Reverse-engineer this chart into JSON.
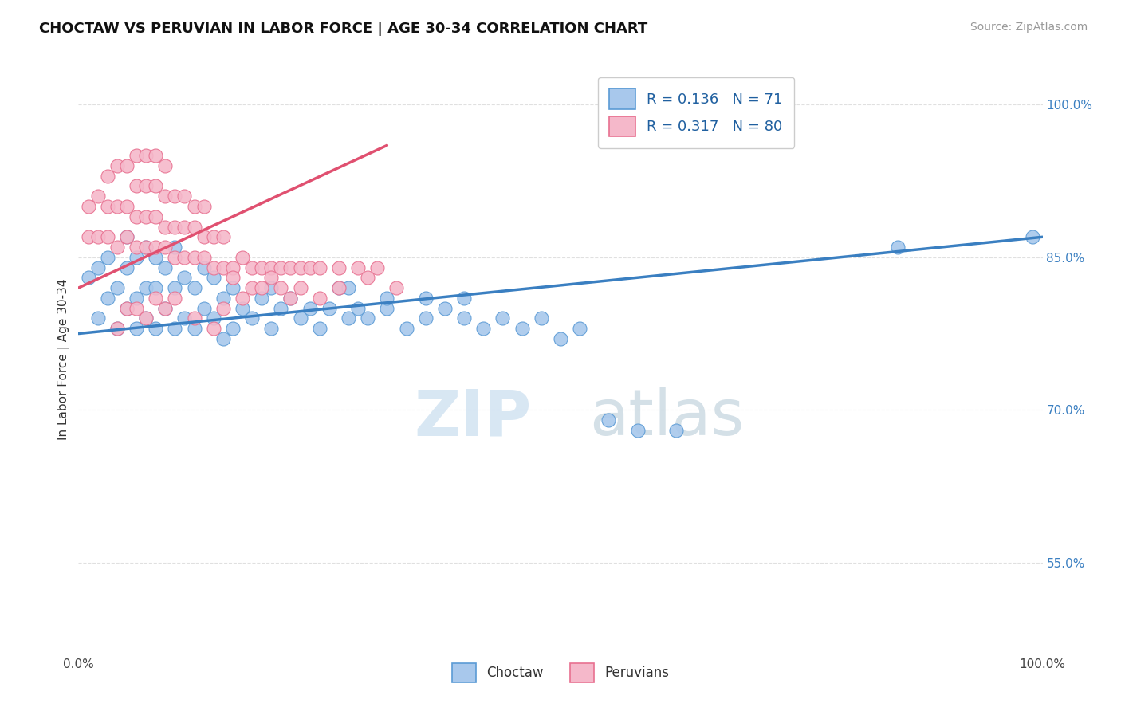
{
  "title": "CHOCTAW VS PERUVIAN IN LABOR FORCE | AGE 30-34 CORRELATION CHART",
  "source_text": "Source: ZipAtlas.com",
  "ylabel": "In Labor Force | Age 30-34",
  "xlim": [
    0,
    1
  ],
  "ylim": [
    0.46,
    1.04
  ],
  "blue_color": "#A8C8EC",
  "pink_color": "#F5B8CA",
  "blue_edge_color": "#5B9BD5",
  "pink_edge_color": "#E87090",
  "blue_line_color": "#3A7FC1",
  "pink_line_color": "#E05070",
  "grid_color": "#DDDDDD",
  "legend_R_blue": "0.136",
  "legend_N_blue": "71",
  "legend_R_pink": "0.317",
  "legend_N_pink": "80",
  "watermark_zip": "ZIP",
  "watermark_atlas": "atlas",
  "ytick_vals": [
    0.55,
    0.7,
    0.85,
    1.0
  ],
  "ytick_labels": [
    "55.0%",
    "70.0%",
    "85.0%",
    "100.0%"
  ],
  "xtick_vals": [
    0.0,
    1.0
  ],
  "xtick_labels": [
    "0.0%",
    "100.0%"
  ],
  "blue_scatter_x": [
    0.01,
    0.02,
    0.02,
    0.03,
    0.03,
    0.04,
    0.04,
    0.05,
    0.05,
    0.05,
    0.06,
    0.06,
    0.06,
    0.07,
    0.07,
    0.07,
    0.08,
    0.08,
    0.08,
    0.09,
    0.09,
    0.1,
    0.1,
    0.1,
    0.11,
    0.11,
    0.12,
    0.12,
    0.13,
    0.13,
    0.14,
    0.14,
    0.15,
    0.15,
    0.16,
    0.16,
    0.17,
    0.18,
    0.19,
    0.2,
    0.2,
    0.21,
    0.22,
    0.23,
    0.24,
    0.25,
    0.26,
    0.27,
    0.28,
    0.29,
    0.3,
    0.32,
    0.34,
    0.36,
    0.38,
    0.4,
    0.42,
    0.44,
    0.46,
    0.48,
    0.5,
    0.52,
    0.55,
    0.58,
    0.62,
    0.28,
    0.32,
    0.36,
    0.4,
    0.85,
    0.99
  ],
  "blue_scatter_y": [
    0.83,
    0.79,
    0.84,
    0.81,
    0.85,
    0.78,
    0.82,
    0.8,
    0.84,
    0.87,
    0.78,
    0.81,
    0.85,
    0.79,
    0.82,
    0.86,
    0.78,
    0.82,
    0.85,
    0.8,
    0.84,
    0.78,
    0.82,
    0.86,
    0.79,
    0.83,
    0.78,
    0.82,
    0.8,
    0.84,
    0.79,
    0.83,
    0.77,
    0.81,
    0.78,
    0.82,
    0.8,
    0.79,
    0.81,
    0.78,
    0.82,
    0.8,
    0.81,
    0.79,
    0.8,
    0.78,
    0.8,
    0.82,
    0.79,
    0.8,
    0.79,
    0.8,
    0.78,
    0.79,
    0.8,
    0.79,
    0.78,
    0.79,
    0.78,
    0.79,
    0.77,
    0.78,
    0.69,
    0.68,
    0.68,
    0.82,
    0.81,
    0.81,
    0.81,
    0.86,
    0.87
  ],
  "pink_scatter_x": [
    0.01,
    0.01,
    0.02,
    0.02,
    0.03,
    0.03,
    0.03,
    0.04,
    0.04,
    0.04,
    0.05,
    0.05,
    0.05,
    0.06,
    0.06,
    0.06,
    0.06,
    0.07,
    0.07,
    0.07,
    0.07,
    0.08,
    0.08,
    0.08,
    0.08,
    0.09,
    0.09,
    0.09,
    0.09,
    0.1,
    0.1,
    0.1,
    0.11,
    0.11,
    0.11,
    0.12,
    0.12,
    0.12,
    0.13,
    0.13,
    0.13,
    0.14,
    0.14,
    0.15,
    0.15,
    0.16,
    0.17,
    0.18,
    0.19,
    0.2,
    0.21,
    0.22,
    0.23,
    0.24,
    0.25,
    0.27,
    0.29,
    0.31,
    0.14,
    0.15,
    0.16,
    0.17,
    0.18,
    0.19,
    0.2,
    0.21,
    0.22,
    0.23,
    0.25,
    0.27,
    0.3,
    0.33,
    0.04,
    0.05,
    0.06,
    0.07,
    0.08,
    0.09,
    0.1,
    0.12
  ],
  "pink_scatter_y": [
    0.87,
    0.9,
    0.87,
    0.91,
    0.87,
    0.9,
    0.93,
    0.86,
    0.9,
    0.94,
    0.87,
    0.9,
    0.94,
    0.86,
    0.89,
    0.92,
    0.95,
    0.86,
    0.89,
    0.92,
    0.95,
    0.86,
    0.89,
    0.92,
    0.95,
    0.86,
    0.88,
    0.91,
    0.94,
    0.85,
    0.88,
    0.91,
    0.85,
    0.88,
    0.91,
    0.85,
    0.88,
    0.9,
    0.85,
    0.87,
    0.9,
    0.84,
    0.87,
    0.84,
    0.87,
    0.84,
    0.85,
    0.84,
    0.84,
    0.84,
    0.84,
    0.84,
    0.84,
    0.84,
    0.84,
    0.84,
    0.84,
    0.84,
    0.78,
    0.8,
    0.83,
    0.81,
    0.82,
    0.82,
    0.83,
    0.82,
    0.81,
    0.82,
    0.81,
    0.82,
    0.83,
    0.82,
    0.78,
    0.8,
    0.8,
    0.79,
    0.81,
    0.8,
    0.81,
    0.79
  ],
  "blue_line_x0": 0.0,
  "blue_line_y0": 0.775,
  "blue_line_x1": 1.0,
  "blue_line_y1": 0.87,
  "pink_line_x0": 0.0,
  "pink_line_y0": 0.82,
  "pink_line_x1": 0.32,
  "pink_line_y1": 0.96
}
